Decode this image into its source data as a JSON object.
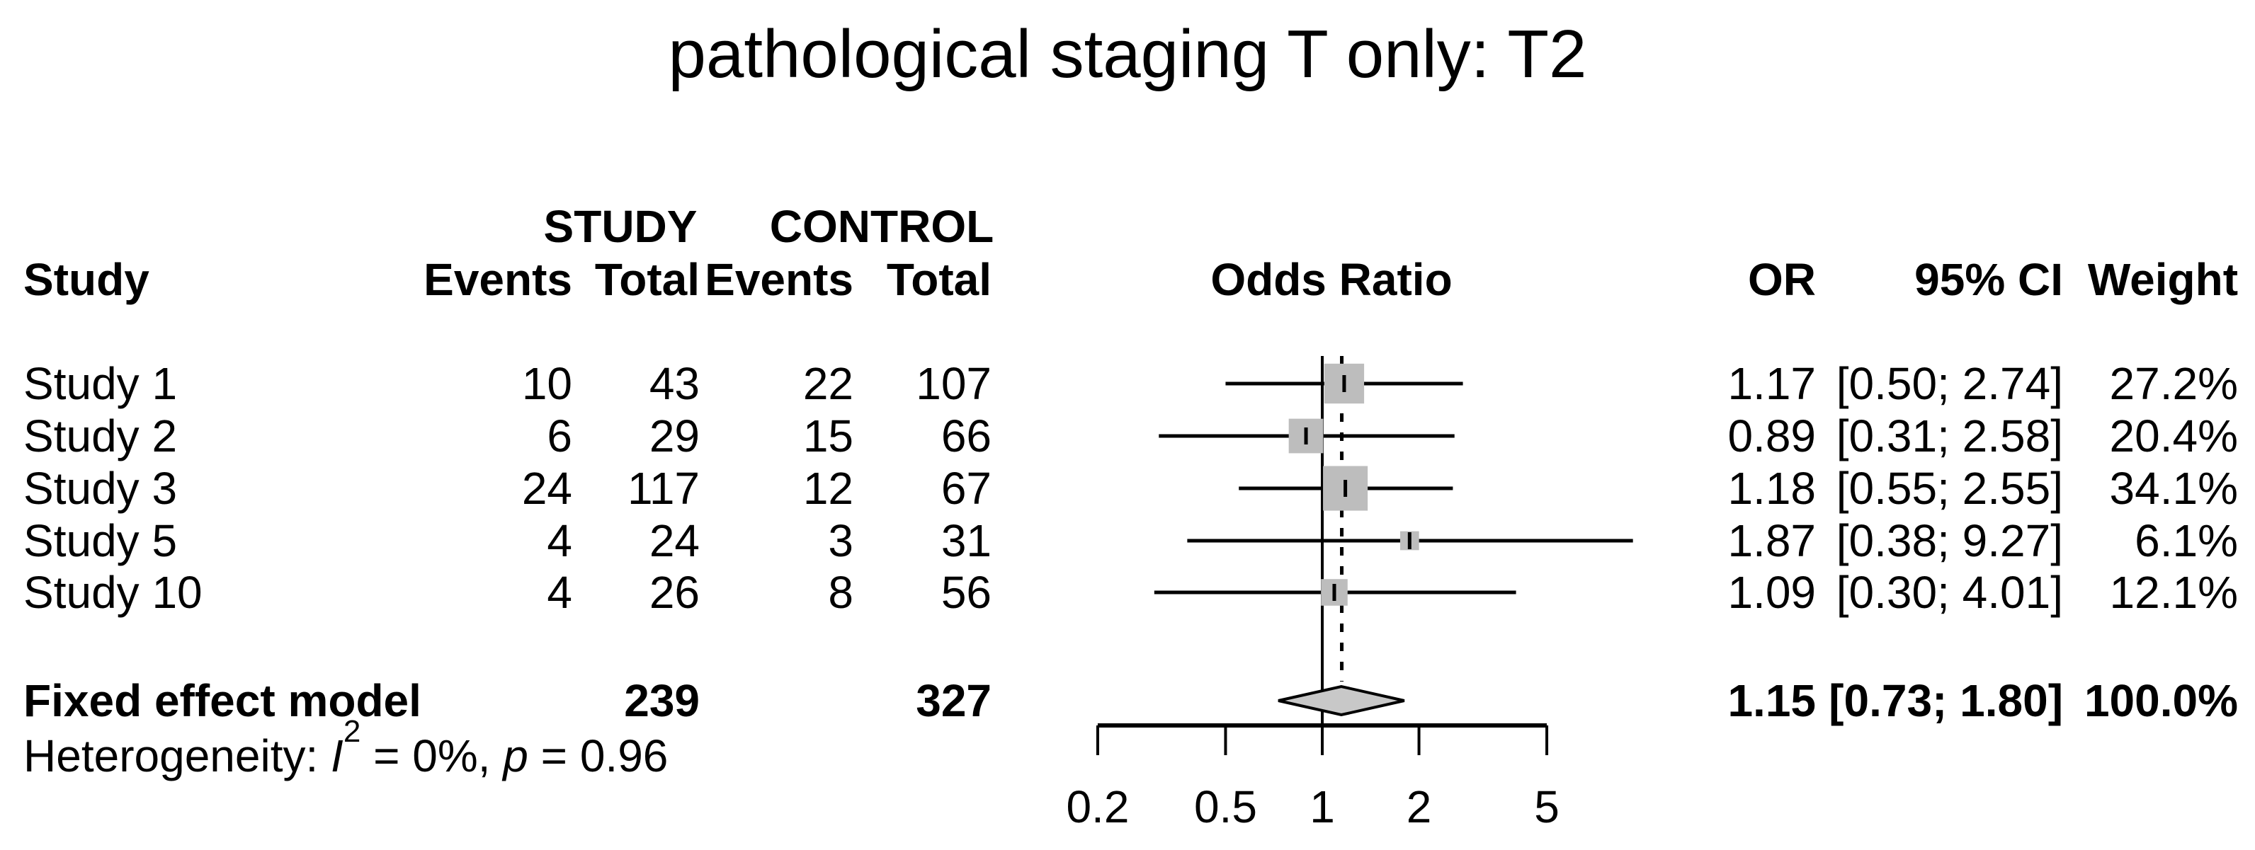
{
  "title": "pathological staging T only: T2",
  "columns": {
    "study": "Study",
    "group_study": "STUDY",
    "group_control": "CONTROL",
    "events1": "Events",
    "total1": "Total",
    "events2": "Events",
    "total2": "Total",
    "odds_ratio": "Odds Ratio",
    "or": "OR",
    "ci": "95% CI",
    "weight": "Weight"
  },
  "studies": [
    {
      "name": "Study 1",
      "events": "10",
      "total": "43",
      "c_events": "22",
      "c_total": "107",
      "or": "1.17",
      "ci": "[0.50; 2.74]",
      "weight": "27.2%"
    },
    {
      "name": "Study 2",
      "events": "6",
      "total": "29",
      "c_events": "15",
      "c_total": "66",
      "or": "0.89",
      "ci": "[0.31; 2.58]",
      "weight": "20.4%"
    },
    {
      "name": "Study 3",
      "events": "24",
      "total": "117",
      "c_events": "12",
      "c_total": "67",
      "or": "1.18",
      "ci": "[0.55; 2.55]",
      "weight": "34.1%"
    },
    {
      "name": "Study 5",
      "events": "4",
      "total": "24",
      "c_events": "3",
      "c_total": "31",
      "or": "1.87",
      "ci": "[0.38; 9.27]",
      "weight": "6.1%"
    },
    {
      "name": "Study 10",
      "events": "4",
      "total": "26",
      "c_events": "8",
      "c_total": "56",
      "or": "1.09",
      "ci": "[0.30; 4.01]",
      "weight": "12.1%"
    }
  ],
  "fixed": {
    "label": "Fixed effect model",
    "total": "239",
    "c_total": "327",
    "or": "1.15",
    "ci": "[0.73; 1.80]",
    "weight": "100.0%"
  },
  "heterogeneity": {
    "prefix": "Heterogeneity: ",
    "stat": "I",
    "sup": "2",
    "mid": " = 0%, ",
    "p": "p",
    "end": " = 0.96"
  },
  "colors": {
    "square": "#bdbdbd",
    "diamond": "#c8c8c8",
    "line": "#000000"
  },
  "chart_data": {
    "type": "forest",
    "title": "pathological staging T only: T2",
    "x_scale": "log",
    "x_ticks": [
      0.2,
      0.5,
      1,
      2,
      5
    ],
    "null_line": 1,
    "studies": [
      {
        "name": "Study 1",
        "events_study": 10,
        "total_study": 43,
        "events_control": 22,
        "total_control": 107,
        "or": 1.17,
        "ci_low": 0.5,
        "ci_high": 2.74,
        "weight_pct": 27.2
      },
      {
        "name": "Study 2",
        "events_study": 6,
        "total_study": 29,
        "events_control": 15,
        "total_control": 66,
        "or": 0.89,
        "ci_low": 0.31,
        "ci_high": 2.58,
        "weight_pct": 20.4
      },
      {
        "name": "Study 3",
        "events_study": 24,
        "total_study": 117,
        "events_control": 12,
        "total_control": 67,
        "or": 1.18,
        "ci_low": 0.55,
        "ci_high": 2.55,
        "weight_pct": 34.1
      },
      {
        "name": "Study 5",
        "events_study": 4,
        "total_study": 24,
        "events_control": 3,
        "total_control": 31,
        "or": 1.87,
        "ci_low": 0.38,
        "ci_high": 9.27,
        "weight_pct": 6.1
      },
      {
        "name": "Study 10",
        "events_study": 4,
        "total_study": 26,
        "events_control": 8,
        "total_control": 56,
        "or": 1.09,
        "ci_low": 0.3,
        "ci_high": 4.01,
        "weight_pct": 12.1
      }
    ],
    "pooled": {
      "label": "Fixed effect model",
      "or": 1.15,
      "ci_low": 0.73,
      "ci_high": 1.8,
      "weight_pct": 100.0,
      "total_study": 239,
      "total_control": 327
    },
    "heterogeneity": {
      "I2_pct": 0,
      "p": 0.96
    }
  }
}
